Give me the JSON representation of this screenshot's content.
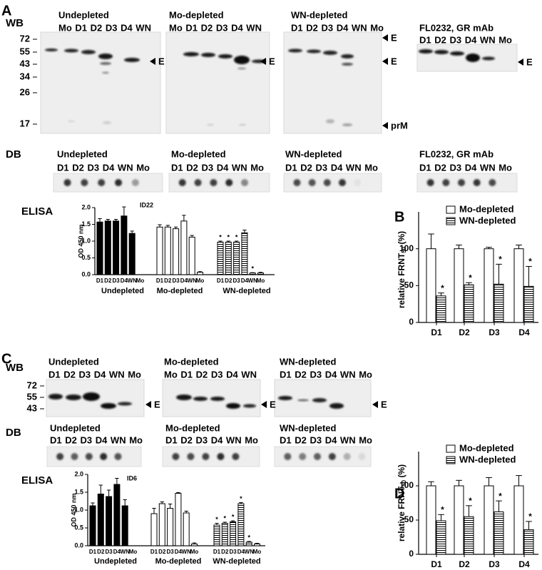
{
  "panel_a": {
    "label": "A",
    "wb_label": "WB",
    "wb_groups": [
      {
        "title": "Undepleted",
        "lanes": "Mo D1 D2 D3 D4 WN"
      },
      {
        "title": "Mo-depleted",
        "lanes": "Mo D1 D2 D3 D4 WN"
      },
      {
        "title": "WN-depleted",
        "lanes": "D1 D2 D3 D4 WN Mo"
      },
      {
        "title": "FL0232, GR mAb",
        "lanes": "D1 D2 D3 D4 WN Mo"
      }
    ],
    "markers": [
      72,
      55,
      43,
      34,
      26,
      17
    ],
    "band_label": "E",
    "prm_label": "prM",
    "db_label": "DB",
    "db_groups": [
      {
        "title": "Undepleted",
        "lanes": "D1 D2 D3 D4 WN Mo"
      },
      {
        "title": "Mo-depleted",
        "lanes": "D1 D2 D3 D4 WN Mo"
      },
      {
        "title": "WN-depleted",
        "lanes": "D1 D2 D3 D4 WN Mo"
      },
      {
        "title": "FL0232, GR mAb",
        "lanes": "D1 D2 D3 D4 WN Mo"
      }
    ],
    "elisa_label": "ELISA"
  },
  "panel_c": {
    "label": "C",
    "wb_label": "WB",
    "wb_groups": [
      {
        "title": "Undepleted",
        "lanes": "D1 D2 D3 D4 WN Mo"
      },
      {
        "title": "Mo-depleted",
        "lanes": "Mo D1 D2 D3 D4 WN"
      },
      {
        "title": "WN-depleted",
        "lanes": "D1 D2 D3 D4 WN Mo"
      }
    ],
    "markers": [
      72,
      55,
      43
    ],
    "band_label": "E",
    "db_label": "DB",
    "db_groups": [
      {
        "title": "Undepleted",
        "lanes": "D1 D2 D3 D4 WN Mo"
      },
      {
        "title": "Mo-depleted",
        "lanes": "D1 D2 D3 D4 WN Mo"
      },
      {
        "title": "WN-depleted",
        "lanes": "D1 D2 D3 D4 WN Mo"
      }
    ],
    "elisa_label": "ELISA"
  },
  "chart_data": [
    {
      "type": "grouped-bar",
      "title": "ID22",
      "y_label": "OD 450 nm",
      "ylim": [
        0,
        2
      ],
      "yticks": [
        {
          "value": 0,
          "label": "0.0"
        },
        0.5,
        {
          "value": 1,
          "label": "1.0"
        },
        1.5,
        {
          "value": 2,
          "label": "2.0"
        }
      ],
      "categories": [
        "D1",
        "D2",
        "D3",
        "D4",
        "WN",
        "Mo"
      ],
      "series": [
        {
          "name": "Undepleted",
          "fill": "solid",
          "values": [
            1.57,
            1.6,
            1.6,
            1.75,
            1.23,
            0
          ],
          "errors": [
            0.1,
            0.05,
            0.05,
            0.27,
            0.07,
            0
          ]
        },
        {
          "name": "Mo-depleted",
          "fill": "open",
          "values": [
            1.42,
            1.42,
            1.37,
            1.6,
            1.12,
            0.07
          ],
          "errors": [
            0.07,
            0.05,
            0.05,
            0.17,
            0.05,
            0.02
          ]
        },
        {
          "name": "WN-depleted",
          "fill": "hatched",
          "values": [
            0.97,
            0.97,
            0.97,
            1.25,
            0.05,
            0.05
          ],
          "errors": [
            0.03,
            0.03,
            0.03,
            0.08,
            0.01,
            0.02
          ],
          "annotations": [
            "*",
            "*",
            "*",
            null,
            "*",
            null
          ]
        }
      ]
    },
    {
      "type": "bar",
      "panel_label": "B",
      "y_label": "relative FRNT",
      "y_label_sub": "50",
      "y_label_suffix": " (%)",
      "ylim": [
        0,
        150
      ],
      "yticks": [
        0,
        50,
        100
      ],
      "categories": [
        "D1",
        "D2",
        "D3",
        "D4"
      ],
      "series": [
        {
          "name": "Mo-depleted",
          "fill": "open",
          "values": [
            100,
            100,
            100,
            100
          ],
          "errors": [
            20,
            5,
            2,
            5
          ]
        },
        {
          "name": "WN-depleted",
          "fill": "hatched",
          "values": [
            36,
            51,
            52,
            49
          ],
          "errors": [
            4,
            3,
            27,
            27
          ],
          "annotations": [
            "*",
            "*",
            "*",
            "*"
          ]
        }
      ]
    },
    {
      "type": "grouped-bar",
      "title": "ID6",
      "y_label": "OD 450 nm",
      "ylim": [
        0,
        2
      ],
      "yticks": [
        {
          "value": 0,
          "label": "0.0"
        },
        0.5,
        {
          "value": 1,
          "label": "1.0"
        },
        1.5,
        {
          "value": 2,
          "label": "2.0"
        }
      ],
      "categories": [
        "D1",
        "D2",
        "D3",
        "D4",
        "WN",
        "Mo"
      ],
      "series": [
        {
          "name": "Undepleted",
          "fill": "solid",
          "values": [
            1.12,
            1.45,
            1.38,
            1.72,
            1.12,
            0
          ],
          "errors": [
            0.08,
            0.25,
            0.18,
            0.17,
            0.17,
            0
          ]
        },
        {
          "name": "Mo-depleted",
          "fill": "open",
          "values": [
            0.9,
            1.18,
            1.05,
            1.47,
            0.92,
            0.05
          ],
          "errors": [
            0.15,
            0.05,
            0.12,
            0.02,
            0.05,
            0.03
          ]
        },
        {
          "name": "WN-depleted",
          "fill": "hatched",
          "values": [
            0.58,
            0.63,
            0.67,
            1.18,
            0.1,
            0.05
          ],
          "errors": [
            0.05,
            0.03,
            0.03,
            0.03,
            0.02,
            0.02
          ],
          "annotations": [
            "*",
            "*",
            "*",
            "*",
            "*",
            null
          ]
        }
      ]
    },
    {
      "type": "bar",
      "panel_label": "D",
      "y_label": "relative FRNT",
      "y_label_sub": "50",
      "y_label_suffix": " (%)",
      "ylim": [
        0,
        150
      ],
      "yticks": [
        0,
        50,
        100
      ],
      "categories": [
        "D1",
        "D2",
        "D3",
        "D4"
      ],
      "series": [
        {
          "name": "Mo-depleted",
          "fill": "open",
          "values": [
            100,
            100,
            100,
            100
          ],
          "errors": [
            6,
            8,
            12,
            15
          ]
        },
        {
          "name": "WN-depleted",
          "fill": "hatched",
          "values": [
            49,
            55,
            62,
            36
          ],
          "errors": [
            9,
            16,
            16,
            12
          ],
          "annotations": [
            "*",
            "*",
            "*",
            "*"
          ]
        }
      ]
    }
  ]
}
